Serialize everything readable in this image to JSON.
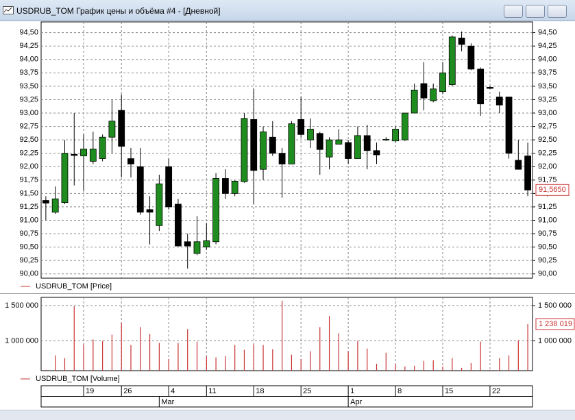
{
  "window": {
    "title": "USDRUB_TOM График цены и объёма #4 - [Дневной]"
  },
  "chart_data": [
    {
      "type": "candlestick",
      "categories": [
        null,
        null,
        null,
        null,
        "19",
        null,
        null,
        null,
        "26",
        null,
        null,
        null,
        null,
        "4",
        null,
        null,
        null,
        "11",
        null,
        null,
        null,
        null,
        "18",
        null,
        null,
        null,
        null,
        "25",
        null,
        null,
        null,
        null,
        "1",
        null,
        null,
        null,
        null,
        "8",
        null,
        null,
        null,
        null,
        "15",
        null,
        null,
        null,
        null,
        "22",
        null,
        null,
        null,
        null
      ],
      "month_labels": [
        null,
        null,
        null,
        null,
        null,
        null,
        null,
        null,
        null,
        null,
        null,
        null,
        "Mar",
        null,
        null,
        null,
        null,
        null,
        null,
        null,
        null,
        null,
        null,
        null,
        null,
        null,
        null,
        null,
        null,
        null,
        null,
        null,
        "Apr",
        null,
        null,
        null,
        null,
        null,
        null,
        null,
        null,
        null,
        null,
        null,
        null,
        null,
        null,
        null,
        null,
        null,
        null,
        null
      ],
      "series": [
        {
          "name": "USDRUB_TOM [Price]",
          "color": "#c83232",
          "up_color": "#1e8c1e",
          "down_color": "#000000",
          "open": [
            91.37,
            91.15,
            91.33,
            92.23,
            92.2,
            92.1,
            92.15,
            92.55,
            93.05,
            92.15,
            92.0,
            91.2,
            90.9,
            92.0,
            91.3,
            90.6,
            90.38,
            90.5,
            90.6,
            91.78,
            91.5,
            91.72,
            92.88,
            91.95,
            92.55,
            92.25,
            92.05,
            92.88,
            92.5,
            92.62,
            92.18,
            92.42,
            92.45,
            92.15,
            92.58,
            92.3,
            92.5,
            92.48,
            92.5,
            93.0,
            93.55,
            93.23,
            93.4,
            93.53,
            94.4,
            94.25,
            93.82,
            93.48,
            93.3,
            93.3,
            92.12,
            92.2
          ],
          "high": [
            91.45,
            91.63,
            92.5,
            93.0,
            92.6,
            92.65,
            92.6,
            93.25,
            93.35,
            92.35,
            92.35,
            91.45,
            91.85,
            92.15,
            91.4,
            90.75,
            91.08,
            90.95,
            91.88,
            91.95,
            91.75,
            93.0,
            93.45,
            92.75,
            92.85,
            92.35,
            92.85,
            93.3,
            92.9,
            92.65,
            92.55,
            92.7,
            92.5,
            92.75,
            92.78,
            92.45,
            92.55,
            92.75,
            93.0,
            93.55,
            93.95,
            93.55,
            93.95,
            94.45,
            94.52,
            94.3,
            93.85,
            93.5,
            93.4,
            93.3,
            92.5,
            92.45
          ],
          "low": [
            91.0,
            91.12,
            91.3,
            91.65,
            91.55,
            92.05,
            92.1,
            92.25,
            91.8,
            91.8,
            91.1,
            90.55,
            90.8,
            91.2,
            90.52,
            90.1,
            90.35,
            90.45,
            90.55,
            91.4,
            91.45,
            91.7,
            91.3,
            91.75,
            92.2,
            91.42,
            92.05,
            92.55,
            92.35,
            91.85,
            91.95,
            92.42,
            92.05,
            92.15,
            91.95,
            92.05,
            92.48,
            92.45,
            92.48,
            93.0,
            93.05,
            93.2,
            93.35,
            93.5,
            94.15,
            93.8,
            92.95,
            93.45,
            93.0,
            92.15,
            91.95,
            91.45
          ],
          "close": [
            91.32,
            91.4,
            92.25,
            92.21,
            92.33,
            92.33,
            92.55,
            92.85,
            92.38,
            92.05,
            91.15,
            91.15,
            91.68,
            91.25,
            90.52,
            90.52,
            90.6,
            90.62,
            91.78,
            91.5,
            91.73,
            92.9,
            91.93,
            92.65,
            92.25,
            92.05,
            92.8,
            92.6,
            92.7,
            92.32,
            92.5,
            92.5,
            92.15,
            92.58,
            92.3,
            92.22,
            92.51,
            92.7,
            93.0,
            93.43,
            93.28,
            93.45,
            93.75,
            94.42,
            94.28,
            93.82,
            93.17,
            93.46,
            93.15,
            92.25,
            91.95,
            91.565
          ],
          "close_label": "91,5650"
        }
      ],
      "ylim": [
        89.92,
        94.7
      ],
      "yticks": [
        {
          "value": 90,
          "label": "90,00"
        },
        {
          "value": 90.25,
          "label": "90,25"
        },
        {
          "value": 90.5,
          "label": "90,50"
        },
        {
          "value": 90.75,
          "label": "90,75"
        },
        {
          "value": 91,
          "label": "91,00"
        },
        {
          "value": 91.25,
          "label": "91,25"
        },
        {
          "value": 91.5,
          "label": "91,50"
        },
        {
          "value": 91.75,
          "label": "91,75"
        },
        {
          "value": 92,
          "label": "92,00"
        },
        {
          "value": 92.25,
          "label": "92,25"
        },
        {
          "value": 92.5,
          "label": "92,50"
        },
        {
          "value": 92.75,
          "label": "92,75"
        },
        {
          "value": 93,
          "label": "93,00"
        },
        {
          "value": 93.25,
          "label": "93,25"
        },
        {
          "value": 93.5,
          "label": "93,50"
        },
        {
          "value": 93.75,
          "label": "93,75"
        },
        {
          "value": 94,
          "label": "94,00"
        },
        {
          "value": 94.25,
          "label": "94,25"
        },
        {
          "value": 94.5,
          "label": "94,50"
        }
      ],
      "grid": true
    },
    {
      "type": "bar",
      "series": [
        {
          "name": "USDRUB_TOM [Volume]",
          "color": "#c83232",
          "values": [
            590000,
            794000,
            755000,
            1490000,
            951000,
            1020000,
            1000000,
            1088000,
            1255000,
            941000,
            1196000,
            1098000,
            971000,
            745000,
            971000,
            1167000,
            990000,
            775000,
            765000,
            784000,
            941000,
            873000,
            951000,
            941000,
            882000,
            1569000,
            804000,
            745000,
            853000,
            1196000,
            1353000,
            1108000,
            853000,
            1000000,
            892000,
            676000,
            833000,
            667000,
            637000,
            647000,
            716000,
            725000,
            637000,
            755000,
            618000,
            686000,
            990000,
            588000,
            755000,
            794000,
            1010000,
            1238019
          ],
          "value_labels": [
            null,
            null,
            null,
            null,
            null,
            null,
            null,
            null,
            null,
            null,
            null,
            null,
            null,
            null,
            null,
            null,
            null,
            null,
            null,
            null,
            null,
            null,
            null,
            null,
            null,
            null,
            null,
            null,
            null,
            null,
            null,
            null,
            null,
            null,
            null,
            null,
            null,
            null,
            null,
            null,
            null,
            null,
            null,
            null,
            null,
            null,
            null,
            null,
            null,
            null,
            null,
            "1 238 019"
          ]
        }
      ],
      "ylim": [
        578000,
        1617000
      ],
      "yticks": [
        {
          "value": 1000000,
          "label": "1 000 000"
        },
        {
          "value": 1500000,
          "label": "1 500 000"
        }
      ],
      "grid": true
    }
  ]
}
